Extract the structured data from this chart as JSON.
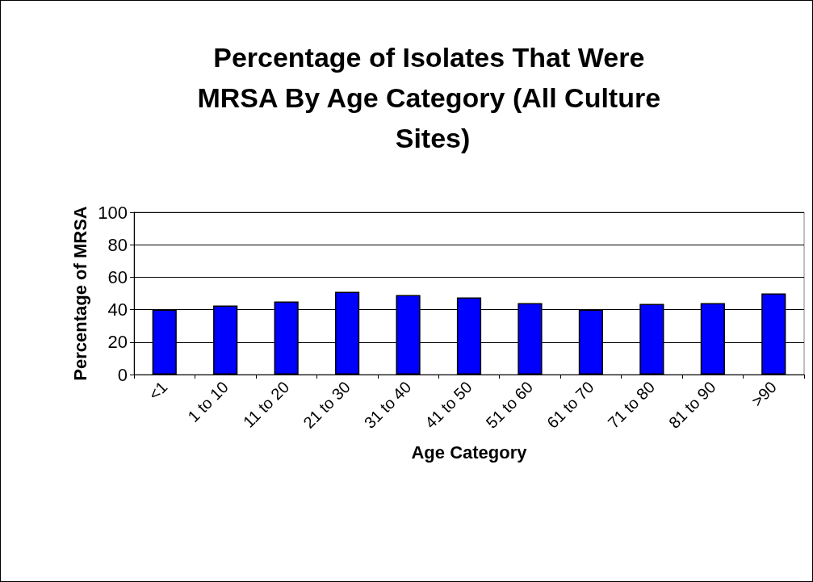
{
  "chart_data": {
    "type": "bar",
    "title": "Percentage of Isolates That Were MRSA By Age Category (All Culture Sites)",
    "xlabel": "Age Category",
    "ylabel": "Percentage of MRSA",
    "categories": [
      "<1",
      "1 to 10",
      "11 to 20",
      "21 to 30",
      "31 to 40",
      "41 to 50",
      "51 to 60",
      "61 to 70",
      "71 to 80",
      "81 to 90",
      ">90"
    ],
    "values": [
      40,
      42.5,
      45,
      51,
      49,
      47.5,
      44,
      40,
      43.5,
      44,
      50
    ],
    "color": "#0000ff",
    "ylim": [
      0,
      100
    ],
    "yticks": [
      0,
      20,
      40,
      60,
      80,
      100
    ],
    "grid": "y"
  }
}
